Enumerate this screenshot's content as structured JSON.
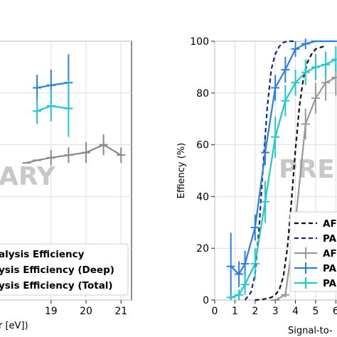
{
  "chart_data": [
    {
      "type": "line",
      "title": "",
      "xlabel_partial": "r [eV])",
      "ylabel": "",
      "xlim": [
        17.5,
        21.3
      ],
      "ylim": [
        0,
        100
      ],
      "xticks": [
        "19",
        "20",
        "21"
      ],
      "watermark": "ARY",
      "grid": true,
      "legend_position": "bottom-left",
      "legend": [
        "alysis Efficiency",
        "ysis Efficiency (Deep)",
        "ysis Efficiency (Total)"
      ],
      "series": [
        {
          "legend_index": 1,
          "color": "#2b7fe0",
          "x": [
            18.6,
            19.0,
            19.5
          ],
          "y": [
            82,
            83,
            84
          ],
          "err": [
            5,
            6,
            11
          ]
        },
        {
          "legend_index": 2,
          "color": "#1ec8cc",
          "x": [
            18.6,
            19.0,
            19.5
          ],
          "y": [
            73,
            75,
            74
          ],
          "err": [
            5,
            6,
            11
          ]
        },
        {
          "legend_index": 0,
          "color": "#888888",
          "x": [
            18.3,
            18.6,
            19.0,
            19.5,
            20.0,
            20.5,
            21.0
          ],
          "y": [
            53,
            54,
            55,
            56,
            57,
            60,
            56
          ],
          "err": [
            0,
            0,
            3,
            3,
            4,
            4,
            3
          ]
        }
      ]
    },
    {
      "type": "line",
      "title": "",
      "xlabel": "Signal-to-",
      "ylabel": "Effiency (%)",
      "xlim": [
        0,
        6.2
      ],
      "ylim": [
        0,
        100
      ],
      "xticks": [
        "0",
        "1",
        "2",
        "3",
        "4",
        "5",
        "6"
      ],
      "yticks": [
        "0",
        "20",
        "40",
        "60",
        "80",
        "100"
      ],
      "watermark": "PRE",
      "grid": true,
      "legend_position": "bottom-right",
      "legend": [
        "AF",
        "PA",
        "AF",
        "PA",
        "PA"
      ],
      "dashed_series": [
        {
          "legend_index": 0,
          "color": "#111111",
          "x": [
            2.0,
            2.4,
            2.8,
            3.0,
            3.2,
            3.4,
            3.6,
            3.8,
            4.0,
            4.2,
            4.4,
            4.6,
            4.8,
            5.0,
            5.4
          ],
          "y": [
            0,
            0.3,
            1,
            2,
            4,
            9,
            20,
            38,
            58,
            75,
            86,
            92,
            95,
            97,
            98
          ]
        },
        {
          "legend_index": 1,
          "color": "#1a237e",
          "x": [
            1.5,
            1.8,
            2.0,
            2.2,
            2.4,
            2.6,
            2.8,
            3.0,
            3.2,
            3.4,
            3.6,
            3.8,
            4.0
          ],
          "y": [
            0,
            3,
            10,
            28,
            52,
            74,
            89,
            95,
            98,
            99.5,
            100,
            100,
            100
          ]
        }
      ],
      "series": [
        {
          "legend_index": 2,
          "color": "#999999",
          "x": [
            3.0,
            3.5,
            4.0,
            4.5,
            5.0,
            5.5,
            6.0
          ],
          "y": [
            0,
            2,
            30,
            68,
            78,
            84,
            86
          ],
          "err": [
            0,
            1,
            4,
            6,
            6,
            7,
            7
          ]
        },
        {
          "legend_index": 3,
          "color": "#2b7fe0",
          "x": [
            0.8,
            1.2,
            1.5,
            2.0,
            2.5,
            3.0,
            3.5,
            4.0,
            4.5,
            5.0,
            5.5,
            6.0
          ],
          "y": [
            13,
            10,
            14,
            28,
            57,
            82,
            89,
            97,
            99,
            100,
            100,
            100
          ],
          "err": [
            13,
            5,
            5,
            5,
            5,
            5,
            5,
            3,
            2,
            0,
            0,
            0
          ]
        },
        {
          "legend_index": 4,
          "color": "#1ec8cc",
          "x": [
            0.8,
            1.2,
            1.5,
            2.0,
            2.5,
            3.0,
            3.5,
            4.0,
            4.5,
            5.0,
            5.5,
            6.0
          ],
          "y": [
            1,
            2,
            6,
            14,
            38,
            63,
            77,
            84,
            88,
            90,
            91,
            93
          ],
          "err": [
            1,
            2,
            4,
            6,
            8,
            8,
            6,
            5,
            5,
            5,
            5,
            5
          ]
        }
      ]
    }
  ]
}
